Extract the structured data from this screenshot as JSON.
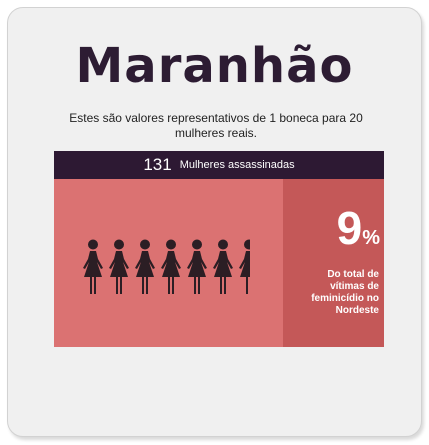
{
  "title": "Maranhão",
  "subtitle": "Estes são valores representativos de 1 boneca para 20 mulheres reais.",
  "header": {
    "count": "131",
    "label": "Mulheres assassinadas"
  },
  "stat": {
    "value": "9",
    "unit": "%",
    "description": "Do total de vítimas de feminicídio no Nordeste"
  },
  "figures": {
    "icon": "woman-figure-icon",
    "full_count": 6,
    "partial_fraction": 0.55
  },
  "colors": {
    "title": "#2d1c33",
    "header_bg": "#2d1933",
    "panel_bg": "#db7272",
    "side_bg": "#c45858",
    "figure": "#2b1e24"
  }
}
